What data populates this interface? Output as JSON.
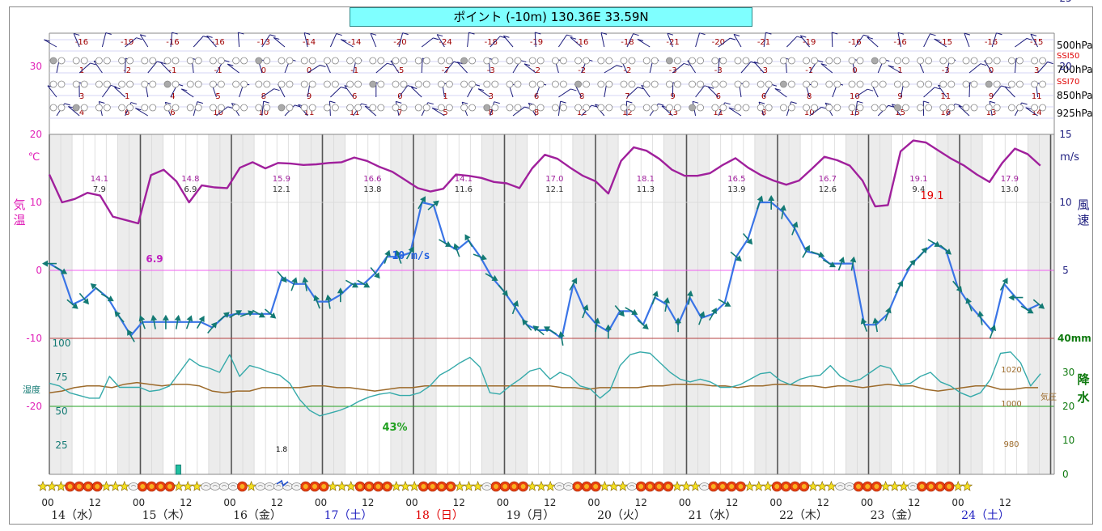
{
  "title": "ポイント (-10m)  130.36E  33.59N",
  "colors": {
    "temp": "#a0209c",
    "wind": "#3a74e6",
    "arrow": "#137a74",
    "humidity": "#36aaaa",
    "pressure": "#9c6a2a",
    "precip": "#20a084",
    "temp_axis": "#e020b8",
    "wind_axis": "#202080",
    "precip_axis": "#107a10",
    "upper_label": "#a00000",
    "zero_line": "#f060f0",
    "forty_line": "#b44040",
    "twenty_line": "#22a022",
    "shade": "#ececec"
  },
  "upper_air": {
    "levels": [
      "500hPa",
      "700hPa",
      "850hPa",
      "925hPa"
    ],
    "ssi_labels": [
      "SSI50",
      "SSI70"
    ],
    "rows": [
      [
        "-16",
        "-19",
        "-16",
        "-16",
        "-13",
        "-14",
        "-14",
        "-20",
        "-24",
        "-18",
        "-19",
        "-16",
        "-18",
        "-21",
        "-20",
        "-21",
        "-19",
        "-16",
        "-16",
        "-15",
        "-16",
        "-15"
      ],
      [
        "1",
        "-2",
        "-1",
        "-1",
        "0",
        "0",
        "-1",
        "-5",
        "-7",
        "-3",
        "-2",
        "-2",
        "-2",
        "-3",
        "-3",
        "-3",
        "-1",
        "0",
        "1",
        "-3",
        "0",
        "3"
      ],
      [
        "3",
        "1",
        "4",
        "5",
        "8",
        "9",
        "6",
        "0",
        "1",
        "3",
        "6",
        "8",
        "7",
        "9",
        "6",
        "6",
        "8",
        "10",
        "9",
        "11",
        "9",
        "11"
      ],
      [
        "4",
        "6",
        "6",
        "10",
        "10",
        "11",
        "11",
        "7",
        "5",
        "8",
        "8",
        "12",
        "12",
        "13",
        "11",
        "8",
        "10",
        "15",
        "15",
        "16",
        "13",
        "14"
      ]
    ]
  },
  "axes": {
    "temp_unit": "℃",
    "temp_label": [
      "気",
      "温"
    ],
    "temp_ticks": [
      "30",
      "20",
      "10",
      "0",
      "-10",
      "-20"
    ],
    "wind_unit": "m/s",
    "wind_label": [
      "風",
      "速"
    ],
    "wind_ticks": [
      "25",
      "20",
      "15",
      "10",
      "5"
    ],
    "precip_unit": "40mm",
    "precip_ticks": [
      "30",
      "20",
      "10",
      "0"
    ],
    "precip_label": [
      "降",
      "水"
    ],
    "humidity_ticks": [
      "100",
      "75",
      "50",
      "25"
    ],
    "humidity_label": "湿度",
    "pressure_ticks": [
      "1020",
      "1000",
      "980"
    ],
    "pressure_label": "気圧"
  },
  "annotations": {
    "temp_min": "6.9",
    "temp_max": "19.1",
    "wind_max": "10 m/s",
    "humidity_min": "43%",
    "precip_value": "1.8"
  },
  "daily": [
    {
      "max": "14.1",
      "min": "7.9"
    },
    {
      "max": "14.8",
      "min": "6.9"
    },
    {
      "max": "15.9",
      "min": "12.1"
    },
    {
      "max": "16.6",
      "min": "13.8"
    },
    {
      "max": "14.1",
      "min": "11.6"
    },
    {
      "max": "17.0",
      "min": "12.1"
    },
    {
      "max": "18.1",
      "min": "11.3"
    },
    {
      "max": "16.5",
      "min": "13.9"
    },
    {
      "max": "16.7",
      "min": "12.6"
    },
    {
      "max": "19.1",
      "min": "9.4"
    },
    {
      "max": "17.9",
      "min": "13.0"
    }
  ],
  "days": [
    {
      "label": "14（水）",
      "color": "#202020"
    },
    {
      "label": "15（木）",
      "color": "#202020"
    },
    {
      "label": "16（金）",
      "color": "#202020"
    },
    {
      "label": "17（土）",
      "color": "#2020c0"
    },
    {
      "label": "18（日）",
      "color": "#e00000"
    },
    {
      "label": "19（月）",
      "color": "#202020"
    },
    {
      "label": "20（火）",
      "color": "#202020"
    },
    {
      "label": "21（水）",
      "color": "#202020"
    },
    {
      "label": "22（木）",
      "color": "#202020"
    },
    {
      "label": "23（金）",
      "color": "#202020"
    },
    {
      "label": "24（土）",
      "color": "#2020c0"
    }
  ],
  "hour_labels": [
    "00",
    "12"
  ],
  "weather_icons": "S S S R R R R S S S C R R R R S S S C C C C R S C C C C C R R R S S S R R R R S S S R R R R S S S C R R R R S S S C C R R R S S S C R R R R S S S C R R R R S S S R R R R S S S C C R R R S S S C R R R R S S",
  "chart_data": {
    "type": "line",
    "x_unit": "hours from 14th 00:00 (3-hourly steps)",
    "temperature_c": [
      14.1,
      10.0,
      10.5,
      11.4,
      11.0,
      7.9,
      7.4,
      6.9,
      14.0,
      14.8,
      13.1,
      10.0,
      12.5,
      12.2,
      12.1,
      15.1,
      15.9,
      15.0,
      15.8,
      15.7,
      15.5,
      15.6,
      15.8,
      15.9,
      16.6,
      16.1,
      15.2,
      14.5,
      13.3,
      12.1,
      11.6,
      12.0,
      14.1,
      13.9,
      13.6,
      13.0,
      12.8,
      12.1,
      15.0,
      17.0,
      16.4,
      15.1,
      13.9,
      13.1,
      11.3,
      16.1,
      18.1,
      17.6,
      16.4,
      14.8,
      13.9,
      13.9,
      14.3,
      15.5,
      16.5,
      15.1,
      14.0,
      13.2,
      12.6,
      13.2,
      14.9,
      16.7,
      16.2,
      15.4,
      13.2,
      9.4,
      9.6,
      17.5,
      19.1,
      18.8,
      17.6,
      16.4,
      15.4,
      14.1,
      13.0,
      15.8,
      17.9,
      17.1,
      15.4
    ],
    "wind_ms": [
      5.5,
      5.0,
      2.5,
      2.9,
      3.7,
      3.0,
      1.6,
      0.2,
      1.2,
      1.2,
      1.2,
      1.2,
      1.2,
      1.2,
      0.8,
      1.6,
      1.8,
      1.8,
      1.8,
      1.8,
      4.5,
      4.0,
      4.0,
      2.7,
      2.7,
      3.2,
      4.0,
      4.0,
      4.8,
      6.0,
      6.0,
      6.3,
      10.0,
      9.8,
      7.0,
      6.5,
      7.2,
      6.0,
      4.5,
      3.5,
      2.3,
      1.0,
      0.6,
      0.6,
      0.0,
      4.0,
      2.0,
      1.0,
      0.5,
      2.0,
      2.0,
      1.0,
      3.0,
      2.5,
      1.0,
      3.0,
      1.5,
      1.8,
      2.6,
      6.0,
      7.3,
      10.0,
      10.0,
      9.3,
      8.1,
      6.4,
      6.2,
      5.5,
      5.5,
      5.5,
      1.0,
      1.0,
      1.8,
      3.8,
      5.4,
      6.3,
      7.0,
      6.5,
      3.8,
      2.5,
      1.5,
      0.5,
      4.0,
      3.0,
      2.1,
      2.5
    ],
    "wind_dir_deg": [
      90,
      300,
      310,
      320,
      130,
      300,
      140,
      150,
      160,
      170,
      180,
      190,
      200,
      210,
      220,
      230,
      240,
      250,
      300,
      310,
      320,
      200,
      170,
      160,
      170,
      180,
      300,
      300,
      320,
      200,
      160,
      210,
      210,
      230,
      300,
      160,
      150,
      290,
      300,
      320,
      200,
      140,
      130,
      120,
      170,
      210,
      200,
      190,
      180,
      320,
      300,
      310,
      200,
      190,
      180,
      190,
      200,
      210,
      300,
      310,
      320,
      200,
      180,
      190,
      200,
      210,
      290,
      300,
      200,
      190,
      160,
      170,
      200,
      210,
      220,
      220,
      300,
      310,
      320,
      160,
      170,
      200,
      210
    ],
    "humidity_pct": [
      67,
      65,
      60,
      58,
      56,
      56,
      72,
      64,
      64,
      64,
      61,
      62,
      65,
      75,
      85,
      80,
      78,
      75,
      88,
      72,
      80,
      78,
      75,
      73,
      67,
      55,
      47,
      43,
      45,
      47,
      50,
      54,
      57,
      59,
      60,
      58,
      58,
      60,
      65,
      73,
      77,
      82,
      86,
      79,
      60,
      59,
      65,
      70,
      76,
      78,
      70,
      75,
      72,
      65,
      63,
      56,
      62,
      80,
      88,
      90,
      89,
      82,
      75,
      70,
      68,
      70,
      68,
      64,
      64,
      66,
      70,
      74,
      75,
      69,
      66,
      70,
      72,
      73,
      80,
      72,
      68,
      70,
      75,
      80,
      78,
      66,
      67,
      72,
      75,
      68,
      65,
      60,
      57,
      60,
      70,
      89,
      90,
      82,
      65,
      74
    ],
    "pressure_hpa": [
      1008,
      1009,
      1011,
      1012,
      1012,
      1011,
      1013,
      1014,
      1013,
      1012,
      1013,
      1013,
      1012,
      1009,
      1008,
      1009,
      1009,
      1011,
      1011,
      1011,
      1011,
      1012,
      1012,
      1011,
      1011,
      1010,
      1009,
      1010,
      1011,
      1011,
      1012,
      1012,
      1012,
      1012,
      1012,
      1012,
      1012,
      1012,
      1012,
      1012,
      1012,
      1011,
      1011,
      1010,
      1011,
      1011,
      1011,
      1011,
      1012,
      1012,
      1013,
      1013,
      1013,
      1012,
      1012,
      1011,
      1012,
      1012,
      1013,
      1013,
      1012,
      1012,
      1011,
      1012,
      1012,
      1011,
      1012,
      1013,
      1012,
      1012,
      1010,
      1009,
      1010,
      1011,
      1012,
      1012,
      1010,
      1010,
      1011,
      1011
    ],
    "precip_mm": [
      {
        "x": 34,
        "value": 1.8
      }
    ],
    "temp_ylim": [
      -20,
      30
    ],
    "wind_ylim": [
      0,
      25
    ],
    "precip_ylim": [
      0,
      40
    ],
    "humidity_ylim": [
      0,
      100
    ],
    "pressure_ylim": [
      960,
      1040
    ],
    "grid": true,
    "legend": "none"
  }
}
